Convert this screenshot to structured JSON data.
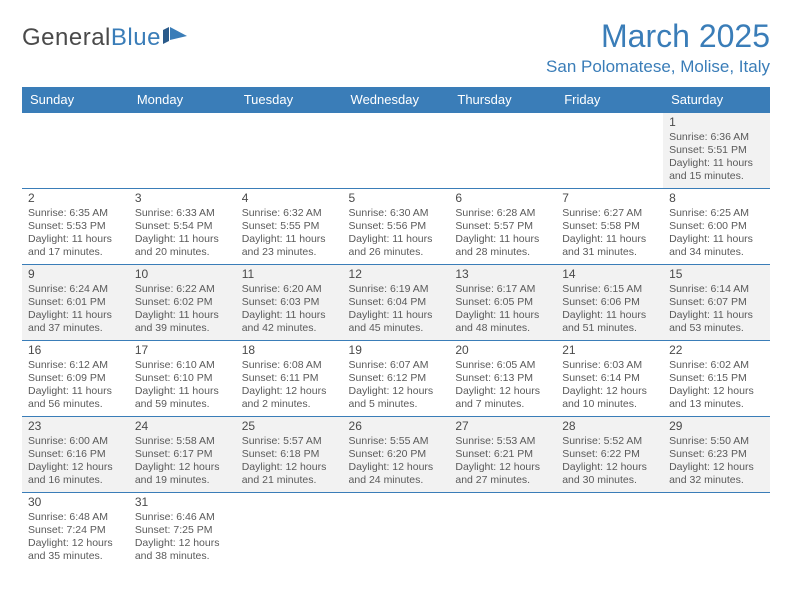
{
  "logo": {
    "part1": "General",
    "part2": "Blue"
  },
  "title": "March 2025",
  "location": "San Polomatese, Molise, Italy",
  "colors": {
    "accent": "#3a7db8",
    "header_bg": "#3a7db8",
    "row_alt": "#f2f2f2",
    "text": "#5a5a5a"
  },
  "day_headers": [
    "Sunday",
    "Monday",
    "Tuesday",
    "Wednesday",
    "Thursday",
    "Friday",
    "Saturday"
  ],
  "weeks": [
    [
      null,
      null,
      null,
      null,
      null,
      null,
      {
        "n": "1",
        "sunrise": "Sunrise: 6:36 AM",
        "sunset": "Sunset: 5:51 PM",
        "day1": "Daylight: 11 hours",
        "day2": "and 15 minutes."
      }
    ],
    [
      {
        "n": "2",
        "sunrise": "Sunrise: 6:35 AM",
        "sunset": "Sunset: 5:53 PM",
        "day1": "Daylight: 11 hours",
        "day2": "and 17 minutes."
      },
      {
        "n": "3",
        "sunrise": "Sunrise: 6:33 AM",
        "sunset": "Sunset: 5:54 PM",
        "day1": "Daylight: 11 hours",
        "day2": "and 20 minutes."
      },
      {
        "n": "4",
        "sunrise": "Sunrise: 6:32 AM",
        "sunset": "Sunset: 5:55 PM",
        "day1": "Daylight: 11 hours",
        "day2": "and 23 minutes."
      },
      {
        "n": "5",
        "sunrise": "Sunrise: 6:30 AM",
        "sunset": "Sunset: 5:56 PM",
        "day1": "Daylight: 11 hours",
        "day2": "and 26 minutes."
      },
      {
        "n": "6",
        "sunrise": "Sunrise: 6:28 AM",
        "sunset": "Sunset: 5:57 PM",
        "day1": "Daylight: 11 hours",
        "day2": "and 28 minutes."
      },
      {
        "n": "7",
        "sunrise": "Sunrise: 6:27 AM",
        "sunset": "Sunset: 5:58 PM",
        "day1": "Daylight: 11 hours",
        "day2": "and 31 minutes."
      },
      {
        "n": "8",
        "sunrise": "Sunrise: 6:25 AM",
        "sunset": "Sunset: 6:00 PM",
        "day1": "Daylight: 11 hours",
        "day2": "and 34 minutes."
      }
    ],
    [
      {
        "n": "9",
        "sunrise": "Sunrise: 6:24 AM",
        "sunset": "Sunset: 6:01 PM",
        "day1": "Daylight: 11 hours",
        "day2": "and 37 minutes."
      },
      {
        "n": "10",
        "sunrise": "Sunrise: 6:22 AM",
        "sunset": "Sunset: 6:02 PM",
        "day1": "Daylight: 11 hours",
        "day2": "and 39 minutes."
      },
      {
        "n": "11",
        "sunrise": "Sunrise: 6:20 AM",
        "sunset": "Sunset: 6:03 PM",
        "day1": "Daylight: 11 hours",
        "day2": "and 42 minutes."
      },
      {
        "n": "12",
        "sunrise": "Sunrise: 6:19 AM",
        "sunset": "Sunset: 6:04 PM",
        "day1": "Daylight: 11 hours",
        "day2": "and 45 minutes."
      },
      {
        "n": "13",
        "sunrise": "Sunrise: 6:17 AM",
        "sunset": "Sunset: 6:05 PM",
        "day1": "Daylight: 11 hours",
        "day2": "and 48 minutes."
      },
      {
        "n": "14",
        "sunrise": "Sunrise: 6:15 AM",
        "sunset": "Sunset: 6:06 PM",
        "day1": "Daylight: 11 hours",
        "day2": "and 51 minutes."
      },
      {
        "n": "15",
        "sunrise": "Sunrise: 6:14 AM",
        "sunset": "Sunset: 6:07 PM",
        "day1": "Daylight: 11 hours",
        "day2": "and 53 minutes."
      }
    ],
    [
      {
        "n": "16",
        "sunrise": "Sunrise: 6:12 AM",
        "sunset": "Sunset: 6:09 PM",
        "day1": "Daylight: 11 hours",
        "day2": "and 56 minutes."
      },
      {
        "n": "17",
        "sunrise": "Sunrise: 6:10 AM",
        "sunset": "Sunset: 6:10 PM",
        "day1": "Daylight: 11 hours",
        "day2": "and 59 minutes."
      },
      {
        "n": "18",
        "sunrise": "Sunrise: 6:08 AM",
        "sunset": "Sunset: 6:11 PM",
        "day1": "Daylight: 12 hours",
        "day2": "and 2 minutes."
      },
      {
        "n": "19",
        "sunrise": "Sunrise: 6:07 AM",
        "sunset": "Sunset: 6:12 PM",
        "day1": "Daylight: 12 hours",
        "day2": "and 5 minutes."
      },
      {
        "n": "20",
        "sunrise": "Sunrise: 6:05 AM",
        "sunset": "Sunset: 6:13 PM",
        "day1": "Daylight: 12 hours",
        "day2": "and 7 minutes."
      },
      {
        "n": "21",
        "sunrise": "Sunrise: 6:03 AM",
        "sunset": "Sunset: 6:14 PM",
        "day1": "Daylight: 12 hours",
        "day2": "and 10 minutes."
      },
      {
        "n": "22",
        "sunrise": "Sunrise: 6:02 AM",
        "sunset": "Sunset: 6:15 PM",
        "day1": "Daylight: 12 hours",
        "day2": "and 13 minutes."
      }
    ],
    [
      {
        "n": "23",
        "sunrise": "Sunrise: 6:00 AM",
        "sunset": "Sunset: 6:16 PM",
        "day1": "Daylight: 12 hours",
        "day2": "and 16 minutes."
      },
      {
        "n": "24",
        "sunrise": "Sunrise: 5:58 AM",
        "sunset": "Sunset: 6:17 PM",
        "day1": "Daylight: 12 hours",
        "day2": "and 19 minutes."
      },
      {
        "n": "25",
        "sunrise": "Sunrise: 5:57 AM",
        "sunset": "Sunset: 6:18 PM",
        "day1": "Daylight: 12 hours",
        "day2": "and 21 minutes."
      },
      {
        "n": "26",
        "sunrise": "Sunrise: 5:55 AM",
        "sunset": "Sunset: 6:20 PM",
        "day1": "Daylight: 12 hours",
        "day2": "and 24 minutes."
      },
      {
        "n": "27",
        "sunrise": "Sunrise: 5:53 AM",
        "sunset": "Sunset: 6:21 PM",
        "day1": "Daylight: 12 hours",
        "day2": "and 27 minutes."
      },
      {
        "n": "28",
        "sunrise": "Sunrise: 5:52 AM",
        "sunset": "Sunset: 6:22 PM",
        "day1": "Daylight: 12 hours",
        "day2": "and 30 minutes."
      },
      {
        "n": "29",
        "sunrise": "Sunrise: 5:50 AM",
        "sunset": "Sunset: 6:23 PM",
        "day1": "Daylight: 12 hours",
        "day2": "and 32 minutes."
      }
    ],
    [
      {
        "n": "30",
        "sunrise": "Sunrise: 6:48 AM",
        "sunset": "Sunset: 7:24 PM",
        "day1": "Daylight: 12 hours",
        "day2": "and 35 minutes."
      },
      {
        "n": "31",
        "sunrise": "Sunrise: 6:46 AM",
        "sunset": "Sunset: 7:25 PM",
        "day1": "Daylight: 12 hours",
        "day2": "and 38 minutes."
      },
      null,
      null,
      null,
      null,
      null
    ]
  ]
}
